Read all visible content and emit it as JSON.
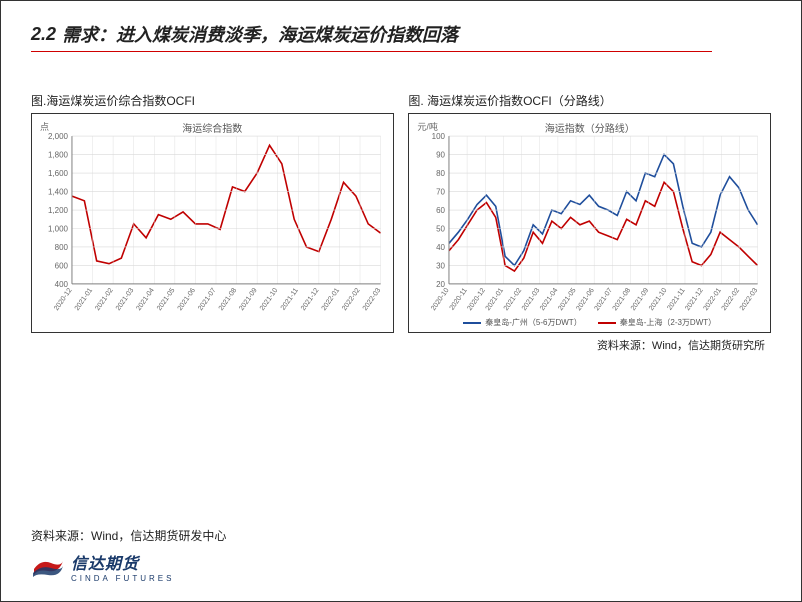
{
  "header": {
    "section_number": "2.2",
    "title": "需求：进入煤炭消费淡季，海运煤炭运价指数回落"
  },
  "chart_left": {
    "type": "line",
    "caption": "图.海运煤炭运价综合指数OCFI",
    "inner_title": "海运综合指数",
    "y_unit": "点",
    "ylim": [
      400,
      2000
    ],
    "ytick_step": 200,
    "yticks": [
      400,
      600,
      800,
      1000,
      1200,
      1400,
      1600,
      1800,
      2000
    ],
    "x_labels": [
      "2020-12",
      "2021-01",
      "2021-02",
      "2021-03",
      "2021-04",
      "2021-05",
      "2021-06",
      "2021-07",
      "2021-08",
      "2021-09",
      "2021-10",
      "2021-11",
      "2021-12",
      "2022-01",
      "2022-02",
      "2022-03"
    ],
    "series": [
      {
        "name": "海运综合指数",
        "color": "#c00000",
        "line_width": 1.6,
        "values": [
          1350,
          1300,
          650,
          620,
          680,
          1050,
          900,
          1150,
          1100,
          1180,
          1050,
          1050,
          990,
          1450,
          1400,
          1600,
          1900,
          1700,
          1100,
          800,
          750,
          1100,
          1500,
          1350,
          1050,
          950
        ]
      }
    ],
    "grid_color": "#d9d9d9",
    "axis_color": "#808080",
    "tick_font_size": 8,
    "label_color": "#666666",
    "background_color": "#ffffff"
  },
  "chart_right": {
    "type": "line",
    "caption": "图. 海运煤炭运价指数OCFI（分路线）",
    "inner_title": "海运指数（分路线）",
    "y_unit": "元/吨",
    "ylim": [
      20,
      100
    ],
    "ytick_step": 10,
    "yticks": [
      20,
      30,
      40,
      50,
      60,
      70,
      80,
      90,
      100
    ],
    "x_labels": [
      "2020-10",
      "2020-11",
      "2020-12",
      "2021-01",
      "2021-02",
      "2021-03",
      "2021-04",
      "2021-05",
      "2021-06",
      "2021-07",
      "2021-08",
      "2021-09",
      "2021-10",
      "2021-11",
      "2021-12",
      "2022-01",
      "2022-02",
      "2022-03"
    ],
    "series": [
      {
        "name": "秦皇岛-广州（5-6万DWT）",
        "color": "#1f4e9c",
        "line_width": 1.6,
        "values": [
          42,
          48,
          55,
          63,
          68,
          62,
          35,
          30,
          38,
          52,
          47,
          60,
          58,
          65,
          63,
          68,
          62,
          60,
          57,
          70,
          65,
          80,
          78,
          90,
          85,
          62,
          42,
          40,
          48,
          68,
          78,
          72,
          60,
          52
        ]
      },
      {
        "name": "秦皇岛-上海（2-3万DWT）",
        "color": "#c00000",
        "line_width": 1.6,
        "values": [
          38,
          44,
          52,
          60,
          64,
          56,
          30,
          27,
          34,
          48,
          42,
          54,
          50,
          56,
          52,
          54,
          48,
          46,
          44,
          55,
          52,
          65,
          62,
          75,
          70,
          50,
          32,
          30,
          36,
          48,
          44,
          40,
          35,
          30
        ]
      }
    ],
    "legend": [
      {
        "label": "秦皇岛-广州（5-6万DWT）",
        "color": "#1f4e9c"
      },
      {
        "label": "秦皇岛-上海（2-3万DWT）",
        "color": "#c00000"
      }
    ],
    "grid_color": "#d9d9d9",
    "axis_color": "#808080",
    "tick_font_size": 8,
    "label_color": "#666666",
    "background_color": "#ffffff"
  },
  "source_right": "资料来源：Wind，信达期货研究所",
  "footer": {
    "source": "资料来源：Wind，信达期货研发中心",
    "logo_cn": "信达期货",
    "logo_en": "CINDA FUTURES"
  },
  "colors": {
    "accent_red": "#d00000",
    "frame": "#333333",
    "text": "#222222"
  }
}
